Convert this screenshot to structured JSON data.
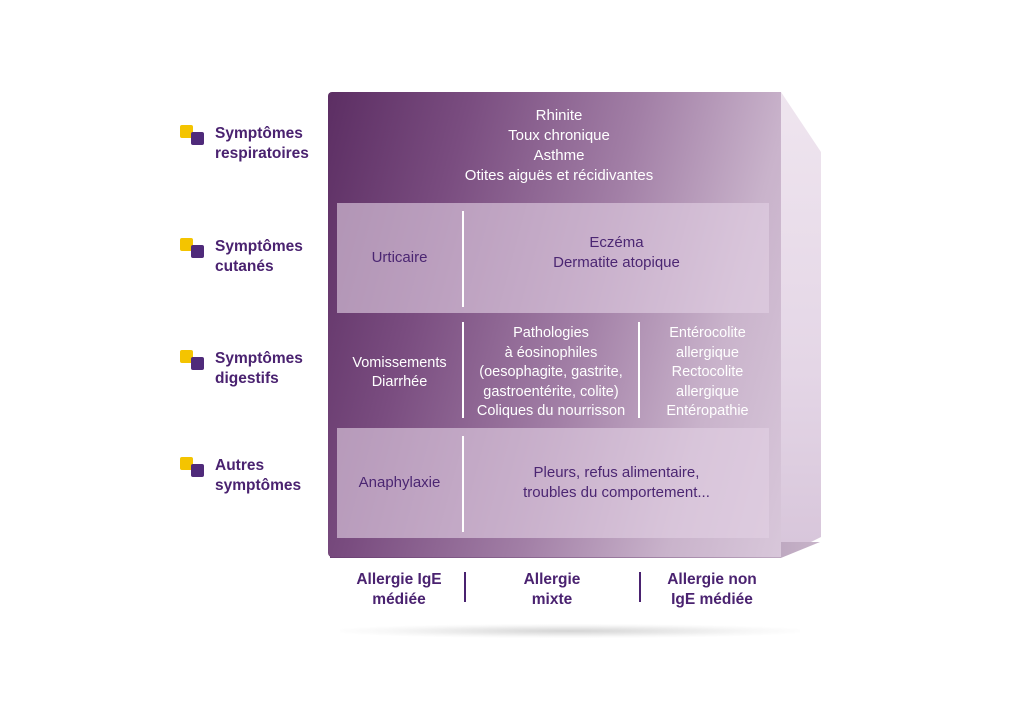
{
  "colors": {
    "accent_yellow": "#f4c400",
    "accent_purple": "#4f2a7a",
    "cube_dark": "#5c2e63",
    "cube_light": "#d8c7da",
    "text_purple": "#4a2270"
  },
  "legend": [
    {
      "line1": "Symptômes",
      "line2": "respiratoires"
    },
    {
      "line1": "Symptômes",
      "line2": "cutanés"
    },
    {
      "line1": "Symptômes",
      "line2": "digestifs"
    },
    {
      "line1": "Autres",
      "line2": "symptômes"
    }
  ],
  "rows": {
    "respiratory": {
      "lines": [
        "Rhinite",
        "Toux chronique",
        "Asthme",
        "Otites aiguës et récidivantes"
      ]
    },
    "cutaneous": {
      "ige": "Urticaire",
      "other_lines": [
        "Eczéma",
        "Dermatite atopique"
      ]
    },
    "digestive": {
      "ige_lines": [
        "Vomissements",
        "Diarrhée"
      ],
      "mixed_lines": [
        "Pathologies",
        "à éosinophiles",
        "(oesophagite, gastrite,",
        "gastroentérite, colite)",
        "Coliques du nourrisson"
      ],
      "non_ige_lines": [
        "Entérocolite",
        "allergique",
        "Rectocolite",
        "allergique",
        "Entéropathie"
      ]
    },
    "other": {
      "ige": "Anaphylaxie",
      "other_lines": [
        "Pleurs, refus alimentaire,",
        "troubles du comportement..."
      ]
    }
  },
  "columns": [
    {
      "line1": "Allergie IgE",
      "line2": "médiée"
    },
    {
      "line1": "Allergie",
      "line2": "mixte"
    },
    {
      "line1": "Allergie non",
      "line2": "IgE médiée"
    }
  ]
}
